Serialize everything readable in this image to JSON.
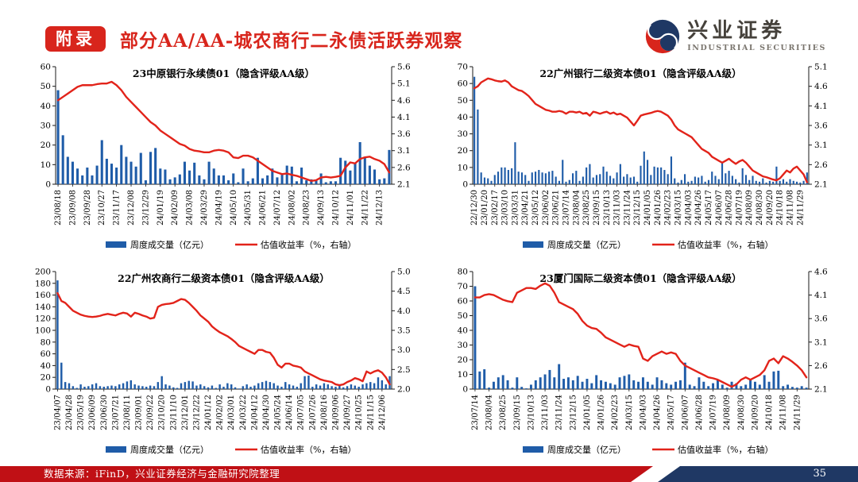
{
  "header": {
    "badge": "附录",
    "title": "部分AA/AA-城农商行二永债活跃券观察"
  },
  "logo": {
    "cn": "兴业证券",
    "en": "INDUSTRIAL SECURITIES"
  },
  "legend": {
    "bars": "周度成交量（亿元）",
    "line": "估值收益率（%，右轴）"
  },
  "footer": {
    "source": "数据来源：iFinD，兴业证券经济与金融研究院整理",
    "page": "35"
  },
  "colors": {
    "title_red": "#D8251C",
    "bar_blue": "#1F5CA8",
    "line_red": "#E2231A",
    "footer_red": "#C01015",
    "footer_navy": "#1F3864",
    "logo_gray": "#45413B",
    "axis_black": "#1a1a1a"
  },
  "chart_data": [
    {
      "type": "bar+line",
      "title": "23中原银行永续债01（隐含评级AA级）",
      "left_axis": {
        "min": 0,
        "max": 60,
        "step": 10
      },
      "right_axis": {
        "min": 2.1,
        "max": 5.6,
        "step": 0.5
      },
      "label_every": 3,
      "x_tick_labels": [
        "23/08/18",
        "23/09/08",
        "23/09/28",
        "23/10/27",
        "23/11/17",
        "23/12/08",
        "23/12/29",
        "24/01/19",
        "24/02/09",
        "24/03/08",
        "24/03/29",
        "24/04/19",
        "24/05/10",
        "24/05/31",
        "24/06/21",
        "24/07/12",
        "24/08/02",
        "24/08/23",
        "24/09/13",
        "24/10/12",
        "24/11/01",
        "24/11/22",
        "24/12/13"
      ],
      "bars": [
        48,
        25,
        14,
        11.5,
        8,
        4.5,
        8.5,
        4.5,
        9.5,
        22.5,
        13,
        10.5,
        8.5,
        20,
        14,
        11.5,
        9,
        16,
        2,
        16.5,
        18.5,
        8,
        7.5,
        2.5,
        3.5,
        5,
        11.5,
        7,
        11,
        4.5,
        2.5,
        11.5,
        8,
        4.5,
        4.5,
        2,
        5.5,
        1,
        8,
        1.5,
        3,
        13.5,
        3,
        4.5,
        8,
        3.5,
        5,
        9.5,
        9,
        1.5,
        8.5,
        2,
        2.5,
        2,
        5.5,
        1,
        1.5,
        1.5,
        13.5,
        12,
        7,
        11,
        21.5,
        14,
        9.5,
        7.5,
        2.5,
        3,
        17.5
      ],
      "line": [
        4.6,
        4.7,
        4.8,
        4.9,
        5.0,
        5.05,
        5.05,
        5.05,
        5.08,
        5.1,
        5.1,
        5.15,
        5.05,
        4.9,
        4.7,
        4.55,
        4.4,
        4.25,
        4.1,
        3.95,
        3.85,
        3.7,
        3.6,
        3.5,
        3.4,
        3.3,
        3.25,
        3.15,
        3.1,
        3.08,
        3.05,
        3.05,
        3.1,
        3.12,
        3.1,
        3.05,
        2.9,
        2.88,
        2.95,
        2.95,
        2.9,
        2.8,
        2.7,
        2.6,
        2.5,
        2.45,
        2.4,
        2.42,
        2.38,
        2.35,
        2.3,
        2.25,
        2.2,
        2.22,
        2.3,
        2.32,
        2.3,
        2.32,
        2.35,
        2.6,
        2.75,
        2.72,
        2.85,
        2.9,
        2.92,
        2.85,
        2.8,
        2.7,
        2.45
      ]
    },
    {
      "type": "bar+line",
      "title": "22广州银行二级资本债01（隐含评级AA级）",
      "left_axis": {
        "min": 0,
        "max": 70,
        "step": 10
      },
      "right_axis": {
        "min": 2.1,
        "max": 5.1,
        "step": 0.5
      },
      "label_every": 3,
      "x_tick_labels": [
        "22/12/30",
        "23/01/20",
        "23/02/17",
        "23/03/10",
        "23/03/31",
        "23/04/21",
        "23/05/12",
        "23/06/02",
        "23/06/21",
        "23/07/14",
        "23/08/04",
        "23/08/25",
        "23/09/15",
        "23/10/13",
        "23/11/03",
        "23/11/24",
        "23/12/15",
        "24/01/05",
        "24/01/26",
        "24/02/23",
        "24/03/15",
        "24/04/03",
        "24/04/26",
        "24/05/17",
        "24/06/07",
        "24/06/28",
        "24/07/19",
        "24/08/09",
        "24/08/30",
        "24/09/20",
        "24/10/18",
        "24/11/08",
        "24/11/29"
      ],
      "bars": [
        64,
        44.5,
        7,
        4,
        3.5,
        2,
        5.5,
        7.5,
        10,
        10,
        8.5,
        9.5,
        25,
        7.5,
        7,
        5.5,
        2,
        7,
        7.5,
        8.5,
        7,
        6.5,
        7.5,
        8,
        4.5,
        2,
        14.5,
        1.5,
        2.5,
        6.5,
        8,
        2,
        4.5,
        10,
        12,
        4,
        5.5,
        6,
        10.5,
        7.5,
        5,
        3.5,
        7,
        12,
        4.5,
        6,
        4,
        4.5,
        1.5,
        11,
        19.5,
        14.5,
        5.5,
        10.5,
        10,
        10,
        8.5,
        6,
        16.5,
        3.5,
        1,
        2.5,
        6,
        1.5,
        2,
        4.5,
        4,
        5,
        1.5,
        2.5,
        7.5,
        5,
        3,
        13.5,
        6.5,
        8,
        5,
        3,
        1,
        9.5,
        5.5,
        2.5,
        5,
        2,
        1.5,
        3.5,
        1,
        2,
        1.5,
        10.5,
        2,
        3,
        1.5,
        3,
        2,
        1.5,
        1,
        2,
        7
      ],
      "line": [
        4.55,
        4.6,
        4.7,
        4.75,
        4.8,
        4.78,
        4.75,
        4.73,
        4.72,
        4.75,
        4.7,
        4.6,
        4.55,
        4.5,
        4.48,
        4.42,
        4.35,
        4.25,
        4.15,
        4.1,
        4.05,
        4.0,
        3.98,
        3.95,
        3.95,
        3.97,
        3.95,
        3.9,
        3.95,
        3.95,
        3.93,
        3.95,
        3.9,
        3.92,
        3.85,
        3.95,
        3.93,
        3.9,
        3.93,
        3.95,
        3.9,
        3.93,
        3.88,
        3.9,
        3.85,
        3.8,
        3.7,
        3.6,
        3.72,
        3.85,
        3.88,
        3.9,
        3.92,
        3.95,
        3.97,
        3.95,
        3.9,
        3.85,
        3.75,
        3.6,
        3.5,
        3.45,
        3.4,
        3.35,
        3.3,
        3.2,
        3.1,
        3.0,
        2.95,
        2.9,
        2.8,
        2.75,
        2.7,
        2.65,
        2.7,
        2.75,
        2.68,
        2.62,
        2.68,
        2.72,
        2.65,
        2.55,
        2.45,
        2.4,
        2.35,
        2.3,
        2.28,
        2.25,
        2.22,
        2.2,
        2.25,
        2.35,
        2.45,
        2.4,
        2.5,
        2.55,
        2.45,
        2.35,
        2.15
      ]
    },
    {
      "type": "bar+line",
      "title": "22广州农商行二级资本债01（隐含评级AA级）",
      "left_axis": {
        "min": 0,
        "max": 200,
        "step": 20
      },
      "right_axis": {
        "min": 2.0,
        "max": 5.0,
        "step": 0.5
      },
      "label_every": 3,
      "x_tick_labels": [
        "23/04/07",
        "23/04/28",
        "23/05/19",
        "23/06/09",
        "23/06/30",
        "23/07/21",
        "23/08/11",
        "23/09/01",
        "23/09/22",
        "23/10/20",
        "23/11/10",
        "23/12/01",
        "23/12/22",
        "24/01/12",
        "24/02/02",
        "24/03/01",
        "24/03/22",
        "24/04/12",
        "24/04/30",
        "24/05/24",
        "24/06/14",
        "24/07/05",
        "24/07/26",
        "24/08/16",
        "24/09/06",
        "24/09/27",
        "24/10/25",
        "24/11/15",
        "24/12/06"
      ],
      "bars": [
        185,
        45,
        12,
        10,
        5,
        2,
        8,
        4,
        5,
        8,
        10,
        5,
        4,
        5,
        6,
        5,
        8,
        10,
        13,
        15,
        8,
        6,
        5,
        4,
        6,
        5,
        12,
        22,
        8,
        6,
        3,
        2,
        10,
        12,
        14,
        13,
        6,
        8,
        5,
        3,
        6,
        2,
        8,
        4,
        10,
        8,
        3,
        1,
        5,
        8,
        4,
        6,
        10,
        12,
        14,
        12,
        10,
        6,
        4,
        12,
        8,
        6,
        4,
        10,
        22,
        23,
        4,
        8,
        6,
        10,
        8,
        5,
        4,
        6,
        3,
        5,
        8,
        6,
        4,
        8,
        10,
        12,
        10,
        20,
        15,
        8,
        22
      ],
      "line": [
        4.45,
        4.25,
        4.2,
        4.1,
        4.0,
        3.95,
        3.9,
        3.87,
        3.85,
        3.84,
        3.85,
        3.87,
        3.9,
        3.92,
        3.9,
        3.88,
        3.92,
        3.95,
        3.93,
        3.85,
        3.95,
        3.92,
        3.88,
        3.85,
        3.8,
        3.82,
        4.1,
        4.15,
        4.17,
        4.18,
        4.2,
        4.25,
        4.3,
        4.28,
        4.2,
        4.1,
        4.0,
        3.88,
        3.8,
        3.72,
        3.6,
        3.52,
        3.45,
        3.4,
        3.35,
        3.28,
        3.2,
        3.1,
        3.05,
        3.0,
        2.95,
        2.9,
        3.0,
        3.0,
        2.95,
        2.93,
        2.8,
        2.62,
        2.55,
        2.65,
        2.65,
        2.6,
        2.58,
        2.55,
        2.45,
        2.4,
        2.35,
        2.3,
        2.25,
        2.22,
        2.2,
        2.18,
        2.12,
        2.1,
        2.12,
        2.18,
        2.22,
        2.28,
        2.25,
        2.2,
        2.45,
        2.4,
        2.45,
        2.48,
        2.42,
        2.3,
        2.12
      ]
    },
    {
      "type": "bar+line",
      "title": "23厦门国际二级资本债01（隐含评级AA级）",
      "left_axis": {
        "min": 0,
        "max": 80,
        "step": 10
      },
      "right_axis": {
        "min": 2.1,
        "max": 4.6,
        "step": 0.5
      },
      "label_every": 3,
      "x_tick_labels": [
        "23/07/14",
        "23/08/04",
        "23/08/25",
        "23/09/15",
        "23/10/13",
        "23/11/03",
        "23/11/24",
        "23/12/15",
        "24/01/05",
        "24/01/26",
        "24/02/23",
        "24/03/15",
        "24/04/03",
        "24/04/26",
        "24/05/17",
        "24/06/07",
        "24/06/28",
        "24/07/19",
        "24/08/09",
        "24/08/30",
        "24/09/20",
        "24/10/18",
        "24/11/08",
        "24/11/29"
      ],
      "bars": [
        70,
        12,
        13.5,
        1,
        5,
        8,
        9.5,
        6,
        1,
        8,
        1.5,
        0.5,
        3,
        6,
        8,
        10,
        13,
        8,
        17,
        7,
        8,
        6,
        9,
        5,
        7,
        4,
        9.5,
        6,
        5,
        4,
        3,
        8,
        9,
        10,
        6,
        5,
        8,
        5,
        3,
        8,
        6,
        4,
        3,
        5,
        6,
        18,
        3,
        2,
        8,
        5,
        2,
        4,
        6,
        3,
        1,
        5,
        4,
        2,
        3,
        7,
        5,
        3,
        9.5,
        5,
        12,
        12.5,
        2,
        3,
        1.5,
        1,
        2,
        1
      ],
      "line": [
        4.05,
        4.05,
        4.1,
        4.12,
        4.1,
        4.05,
        4.0,
        3.97,
        3.95,
        4.15,
        4.2,
        4.25,
        4.25,
        4.23,
        4.3,
        4.35,
        4.3,
        4.15,
        3.95,
        3.9,
        3.85,
        3.8,
        3.7,
        3.55,
        3.45,
        3.4,
        3.38,
        3.3,
        3.2,
        3.15,
        3.1,
        3.05,
        3.0,
        3.05,
        3.02,
        3.0,
        2.75,
        2.7,
        2.8,
        2.85,
        2.9,
        2.85,
        2.88,
        2.85,
        2.7,
        2.6,
        2.55,
        2.5,
        2.45,
        2.4,
        2.35,
        2.33,
        2.3,
        2.25,
        2.2,
        2.15,
        2.2,
        2.3,
        2.35,
        2.3,
        2.35,
        2.4,
        2.5,
        2.7,
        2.75,
        2.65,
        2.8,
        2.75,
        2.68,
        2.6,
        2.5,
        2.35
      ]
    }
  ]
}
